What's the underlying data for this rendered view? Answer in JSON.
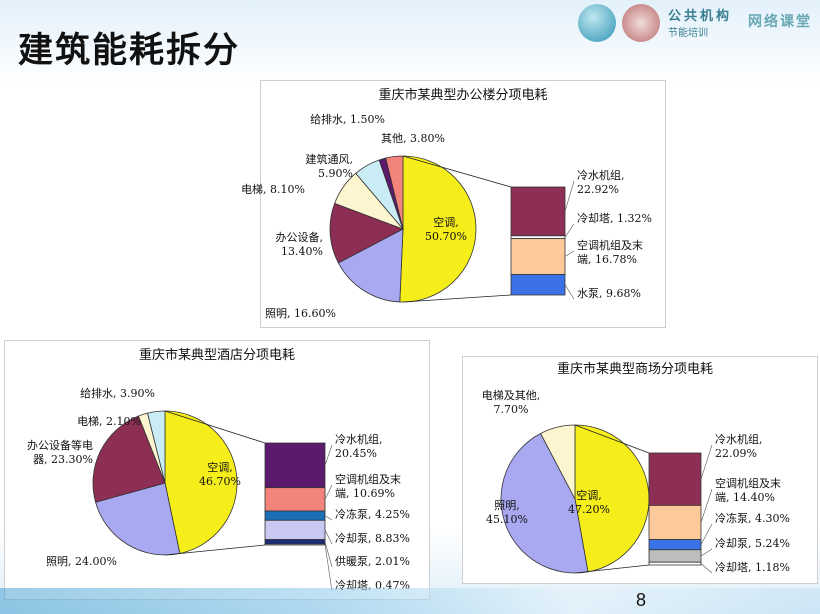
{
  "slide": {
    "title": "建筑能耗拆分",
    "page_number": "8",
    "logo_text_top": "公共机构",
    "logo_text_bottom": "节能培训",
    "logo_text_right": "网络课堂"
  },
  "chart_data": [
    {
      "type": "pie",
      "title": "重庆市某典型办公楼分项电耗",
      "slices": [
        {
          "label": "空调",
          "value": 50.7,
          "color": "#f5ee1b"
        },
        {
          "label": "照明",
          "value": 16.6,
          "color": "#a9a9f2"
        },
        {
          "label": "办公设备",
          "value": 13.4,
          "color": "#8d2f54"
        },
        {
          "label": "电梯",
          "value": 8.1,
          "color": "#fcf5cf"
        },
        {
          "label": "建筑通风",
          "value": 5.9,
          "color": "#c9ecf5"
        },
        {
          "label": "给排水",
          "value": 1.5,
          "color": "#5b1a6b"
        },
        {
          "label": "其他",
          "value": 3.8,
          "color": "#f3847c"
        }
      ],
      "breakdown_of": "空调",
      "breakdown": [
        {
          "label": "冷水机组",
          "value": 22.92,
          "color": "#8d2f54"
        },
        {
          "label": "冷却塔",
          "value": 1.32,
          "color": "#ffffff"
        },
        {
          "label": "空调机组及末端",
          "value": 16.78,
          "color": "#fcc99a"
        },
        {
          "label": "水泵",
          "value": 9.68,
          "color": "#3b72e8"
        }
      ],
      "slice_labels": [
        "空调,\n50.70%",
        "照明, 16.60%",
        "办公设备,\n13.40%",
        "电梯, 8.10%",
        "建筑通风,\n5.90%",
        "给排水, 1.50%",
        "其他, 3.80%"
      ],
      "breakdown_labels": [
        "冷水机组,\n22.92%",
        "冷却塔, 1.32%",
        "空调机组及末\n端, 16.78%",
        "水泵, 9.68%"
      ]
    },
    {
      "type": "pie",
      "title": "重庆市某典型酒店分项电耗",
      "slices": [
        {
          "label": "空调",
          "value": 46.7,
          "color": "#f5ee1b"
        },
        {
          "label": "照明",
          "value": 24.0,
          "color": "#a9a9f2"
        },
        {
          "label": "办公设备等电器",
          "value": 23.3,
          "color": "#8d2f54"
        },
        {
          "label": "电梯",
          "value": 2.1,
          "color": "#fcf5cf"
        },
        {
          "label": "给排水",
          "value": 3.9,
          "color": "#c9ecf5"
        }
      ],
      "breakdown_of": "空调",
      "breakdown": [
        {
          "label": "冷水机组",
          "value": 20.45,
          "color": "#5b1a6b"
        },
        {
          "label": "空调机组及末端",
          "value": 10.69,
          "color": "#f3847c"
        },
        {
          "label": "冷冻泵",
          "value": 4.25,
          "color": "#1a6fb5"
        },
        {
          "label": "冷却泵",
          "value": 8.83,
          "color": "#c8c8f3"
        },
        {
          "label": "供暖泵",
          "value": 2.01,
          "color": "#1a2a7a"
        },
        {
          "label": "冷却塔",
          "value": 0.47,
          "color": "#ffffff"
        }
      ],
      "slice_labels": [
        "空调,\n46.70%",
        "照明, 24.00%",
        "办公设备等电\n器, 23.30%",
        "电梯, 2.10%",
        "给排水, 3.90%"
      ],
      "breakdown_labels": [
        "冷水机组,\n20.45%",
        "空调机组及末\n端, 10.69%",
        "冷冻泵, 4.25%",
        "冷却泵, 8.83%",
        "供暖泵, 2.01%",
        "冷却塔, 0.47%"
      ]
    },
    {
      "type": "pie",
      "title": "重庆市某典型商场分项电耗",
      "slices": [
        {
          "label": "空调",
          "value": 47.2,
          "color": "#f5ee1b"
        },
        {
          "label": "照明",
          "value": 45.1,
          "color": "#a9a9f2"
        },
        {
          "label": "电梯及其他",
          "value": 7.7,
          "color": "#fcf5cf"
        }
      ],
      "breakdown_of": "空调",
      "breakdown": [
        {
          "label": "冷水机组",
          "value": 22.09,
          "color": "#8d2f54"
        },
        {
          "label": "空调机组及末端",
          "value": 14.4,
          "color": "#fcc99a"
        },
        {
          "label": "冷冻泵",
          "value": 4.3,
          "color": "#3b72e8"
        },
        {
          "label": "冷却泵",
          "value": 5.24,
          "color": "#bdbdbd"
        },
        {
          "label": "冷却塔",
          "value": 1.18,
          "color": "#ffffff"
        }
      ],
      "slice_labels": [
        "空调,\n47.20%",
        "照明,\n45.10%",
        "电梯及其他,\n7.70%"
      ],
      "breakdown_labels": [
        "冷水机组,\n22.09%",
        "空调机组及末\n端, 14.40%",
        "冷冻泵, 4.30%",
        "冷却泵, 5.24%",
        "冷却塔, 1.18%"
      ]
    }
  ]
}
